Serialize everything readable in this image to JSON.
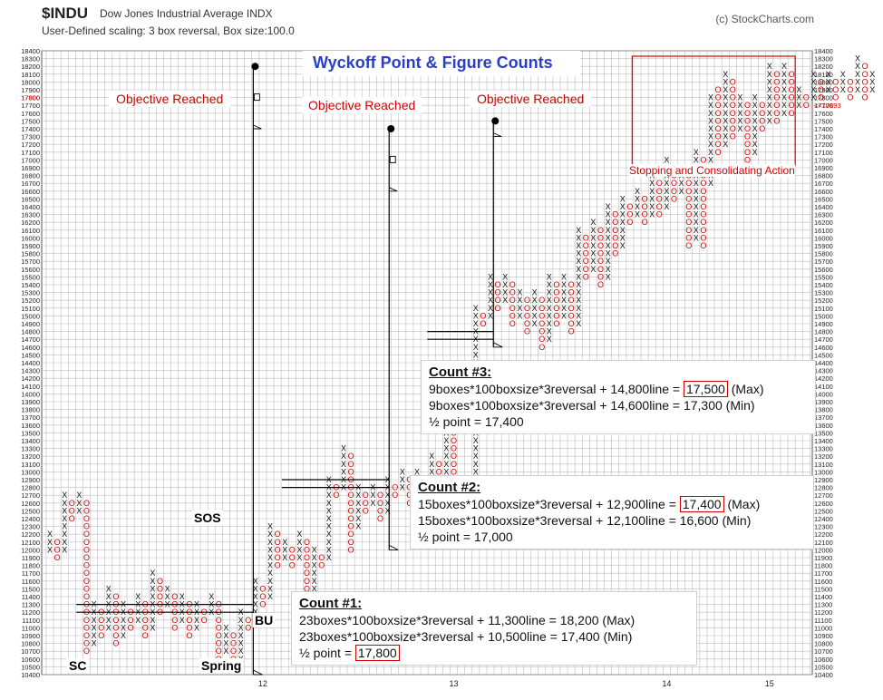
{
  "header": {
    "symbol": "$INDU",
    "name": "Dow Jones Industrial Average  INDX",
    "scaling": "User-Defined scaling: 3 box reversal, Box size:100.0",
    "credit": "(c) StockCharts.com"
  },
  "chart_data": {
    "type": "point-and-figure",
    "title": "Wyckoff Point & Figure Counts",
    "box_size": 100,
    "reversal": 3,
    "ylim": [
      10400,
      18400
    ],
    "y_tick_step": 100,
    "x_tick_labels": [
      "12",
      "13",
      "14",
      "15"
    ],
    "last_price_marker": "17800",
    "right_last_marker": "<<17893",
    "annotations": {
      "objective_1": "Objective Reached",
      "objective_2": "Objective Reached",
      "objective_3": "Objective Reached",
      "consolidation": "Stopping and Consolidating Action",
      "sc": "SC",
      "spring": "Spring",
      "sos": "SOS",
      "bu": "BU"
    },
    "count_lines": [
      {
        "name": "Count #1",
        "line": 11300,
        "target_max": 18200,
        "target_min": 17400
      },
      {
        "name": "Count #2",
        "line": 12900,
        "target_max": 17400,
        "target_min": 16600
      },
      {
        "name": "Count #3",
        "line": 14800,
        "target_max": 17500,
        "target_min": 17300
      }
    ],
    "columns": [
      {
        "t": "X",
        "lo": 12000,
        "hi": 12200
      },
      {
        "t": "O",
        "lo": 11900,
        "hi": 12100
      },
      {
        "t": "X",
        "lo": 12000,
        "hi": 12700
      },
      {
        "t": "O",
        "lo": 12400,
        "hi": 12600
      },
      {
        "t": "X",
        "lo": 12500,
        "hi": 12700
      },
      {
        "t": "O",
        "lo": 10700,
        "hi": 12600
      },
      {
        "t": "X",
        "lo": 10800,
        "hi": 11300
      },
      {
        "t": "O",
        "lo": 10900,
        "hi": 11200
      },
      {
        "t": "X",
        "lo": 11000,
        "hi": 11500
      },
      {
        "t": "O",
        "lo": 10800,
        "hi": 11400
      },
      {
        "t": "X",
        "lo": 10900,
        "hi": 11300
      },
      {
        "t": "O",
        "lo": 11000,
        "hi": 11200
      },
      {
        "t": "X",
        "lo": 11100,
        "hi": 11400
      },
      {
        "t": "O",
        "lo": 10900,
        "hi": 11300
      },
      {
        "t": "X",
        "lo": 11000,
        "hi": 11700
      },
      {
        "t": "O",
        "lo": 11200,
        "hi": 11600
      },
      {
        "t": "X",
        "lo": 11300,
        "hi": 11500
      },
      {
        "t": "O",
        "lo": 11000,
        "hi": 11400
      },
      {
        "t": "X",
        "lo": 11100,
        "hi": 11400
      },
      {
        "t": "O",
        "lo": 10900,
        "hi": 11300
      },
      {
        "t": "X",
        "lo": 11000,
        "hi": 11300
      },
      {
        "t": "O",
        "lo": 11100,
        "hi": 11200
      },
      {
        "t": "X",
        "lo": 11200,
        "hi": 11400
      },
      {
        "t": "O",
        "lo": 10600,
        "hi": 11300
      },
      {
        "t": "X",
        "lo": 10700,
        "hi": 11000
      },
      {
        "t": "O",
        "lo": 10500,
        "hi": 10900
      },
      {
        "t": "X",
        "lo": 10600,
        "hi": 11200
      },
      {
        "t": "O",
        "lo": 11000,
        "hi": 11100
      },
      {
        "t": "X",
        "lo": 11100,
        "hi": 11600
      },
      {
        "t": "O",
        "lo": 11300,
        "hi": 11500
      },
      {
        "t": "X",
        "lo": 11400,
        "hi": 12300
      },
      {
        "t": "O",
        "lo": 11800,
        "hi": 12200
      },
      {
        "t": "X",
        "lo": 11900,
        "hi": 12100
      },
      {
        "t": "O",
        "lo": 11800,
        "hi": 12000
      },
      {
        "t": "X",
        "lo": 11900,
        "hi": 12200
      },
      {
        "t": "O",
        "lo": 11200,
        "hi": 12100
      },
      {
        "t": "X",
        "lo": 11300,
        "hi": 12000
      },
      {
        "t": "O",
        "lo": 11800,
        "hi": 11900
      },
      {
        "t": "X",
        "lo": 11900,
        "hi": 12900
      },
      {
        "t": "O",
        "lo": 12700,
        "hi": 12800
      },
      {
        "t": "X",
        "lo": 12800,
        "hi": 13300
      },
      {
        "t": "O",
        "lo": 12000,
        "hi": 13200
      },
      {
        "t": "X",
        "lo": 12300,
        "hi": 12800
      },
      {
        "t": "O",
        "lo": 12500,
        "hi": 12700
      },
      {
        "t": "X",
        "lo": 12600,
        "hi": 12800
      },
      {
        "t": "O",
        "lo": 12400,
        "hi": 12700
      },
      {
        "t": "X",
        "lo": 12500,
        "hi": 12900
      },
      {
        "t": "O",
        "lo": 12700,
        "hi": 12800
      },
      {
        "t": "X",
        "lo": 12800,
        "hi": 13000
      },
      {
        "t": "O",
        "lo": 12600,
        "hi": 12900
      },
      {
        "t": "X",
        "lo": 12700,
        "hi": 13000
      },
      {
        "t": "O",
        "lo": 12800,
        "hi": 12900
      },
      {
        "t": "X",
        "lo": 12900,
        "hi": 13200
      },
      {
        "t": "O",
        "lo": 12900,
        "hi": 13100
      },
      {
        "t": "X",
        "lo": 13000,
        "hi": 13600
      },
      {
        "t": "O",
        "lo": 12400,
        "hi": 13500
      },
      {
        "t": "X",
        "lo": 12500,
        "hi": 12900
      },
      {
        "t": "O",
        "lo": 12800,
        "hi": 12800
      },
      {
        "t": "X",
        "lo": 12900,
        "hi": 15100
      },
      {
        "t": "O",
        "lo": 14900,
        "hi": 15000
      },
      {
        "t": "X",
        "lo": 15000,
        "hi": 15500
      },
      {
        "t": "O",
        "lo": 15100,
        "hi": 15400
      },
      {
        "t": "X",
        "lo": 15200,
        "hi": 15500
      },
      {
        "t": "O",
        "lo": 14900,
        "hi": 15400
      },
      {
        "t": "X",
        "lo": 15000,
        "hi": 15300
      },
      {
        "t": "O",
        "lo": 14800,
        "hi": 15200
      },
      {
        "t": "X",
        "lo": 14900,
        "hi": 15300
      },
      {
        "t": "O",
        "lo": 14600,
        "hi": 15200
      },
      {
        "t": "X",
        "lo": 14700,
        "hi": 15500
      },
      {
        "t": "O",
        "lo": 14900,
        "hi": 15400
      },
      {
        "t": "X",
        "lo": 15000,
        "hi": 15500
      },
      {
        "t": "O",
        "lo": 14800,
        "hi": 15400
      },
      {
        "t": "X",
        "lo": 14900,
        "hi": 16100
      },
      {
        "t": "O",
        "lo": 15500,
        "hi": 16000
      },
      {
        "t": "X",
        "lo": 15600,
        "hi": 16200
      },
      {
        "t": "O",
        "lo": 15400,
        "hi": 16100
      },
      {
        "t": "X",
        "lo": 15500,
        "hi": 16400
      },
      {
        "t": "O",
        "lo": 15800,
        "hi": 16300
      },
      {
        "t": "X",
        "lo": 15900,
        "hi": 16500
      },
      {
        "t": "O",
        "lo": 16200,
        "hi": 16400
      },
      {
        "t": "X",
        "lo": 16300,
        "hi": 16600
      },
      {
        "t": "O",
        "lo": 16200,
        "hi": 16500
      },
      {
        "t": "X",
        "lo": 16300,
        "hi": 16800
      },
      {
        "t": "O",
        "lo": 16300,
        "hi": 16700
      },
      {
        "t": "X",
        "lo": 16400,
        "hi": 17000
      },
      {
        "t": "O",
        "lo": 16500,
        "hi": 16900
      },
      {
        "t": "X",
        "lo": 16600,
        "hi": 16900
      },
      {
        "t": "O",
        "lo": 15900,
        "hi": 16800
      },
      {
        "t": "X",
        "lo": 16000,
        "hi": 17100
      },
      {
        "t": "O",
        "lo": 15900,
        "hi": 17000
      },
      {
        "t": "X",
        "lo": 16700,
        "hi": 17800
      },
      {
        "t": "O",
        "lo": 17100,
        "hi": 17900
      },
      {
        "t": "X",
        "lo": 17200,
        "hi": 18100
      },
      {
        "t": "O",
        "lo": 17300,
        "hi": 18000
      },
      {
        "t": "X",
        "lo": 17400,
        "hi": 17800
      },
      {
        "t": "O",
        "lo": 17000,
        "hi": 17700
      },
      {
        "t": "X",
        "lo": 17100,
        "hi": 17800
      },
      {
        "t": "O",
        "lo": 17400,
        "hi": 17700
      },
      {
        "t": "X",
        "lo": 17500,
        "hi": 18200
      },
      {
        "t": "O",
        "lo": 17500,
        "hi": 18100
      },
      {
        "t": "X",
        "lo": 17600,
        "hi": 18200
      },
      {
        "t": "O",
        "lo": 17600,
        "hi": 18100
      },
      {
        "t": "X",
        "lo": 17700,
        "hi": 17900
      },
      {
        "t": "O",
        "lo": 17700,
        "hi": 17800
      },
      {
        "t": "X",
        "lo": 17800,
        "hi": 18100
      },
      {
        "t": "O",
        "lo": 17800,
        "hi": 18000
      },
      {
        "t": "X",
        "lo": 17900,
        "hi": 18100
      },
      {
        "t": "O",
        "lo": 17800,
        "hi": 18000
      },
      {
        "t": "X",
        "lo": 17900,
        "hi": 18100
      },
      {
        "t": "O",
        "lo": 17800,
        "hi": 18000
      },
      {
        "t": "X",
        "lo": 17900,
        "hi": 18300
      },
      {
        "t": "O",
        "lo": 17800,
        "hi": 18200
      },
      {
        "t": "X",
        "lo": 17900,
        "hi": 18100
      }
    ]
  },
  "counts": {
    "count1": {
      "title": "Count #1:",
      "line1": "23boxes*100boxsize*3reversal + 11,300line = 18,200 (Max)",
      "line2": "23boxes*100boxsize*3reversal + 10,500line = 17,400 (Min)",
      "half_prefix": "½ point = ",
      "half_value": "17,800"
    },
    "count2": {
      "title": "Count #2:",
      "line1_a": "15boxes*100boxsize*3reversal + 12,900line = ",
      "line1_hl": "17,400",
      "line1_b": " (Max)",
      "line2": "15boxes*100boxsize*3reversal + 12,100line = 16,600 (Min)",
      "half": "½ point = 17,000"
    },
    "count3": {
      "title": "Count #3:",
      "line1_a": "9boxes*100boxsize*3reversal + 14,800line = ",
      "line1_hl": "17,500",
      "line1_b": " (Max)",
      "line2": "9boxes*100boxsize*3reversal + 14,600line = 17,300 (Min)",
      "half": " ½ point = 17,400"
    }
  }
}
